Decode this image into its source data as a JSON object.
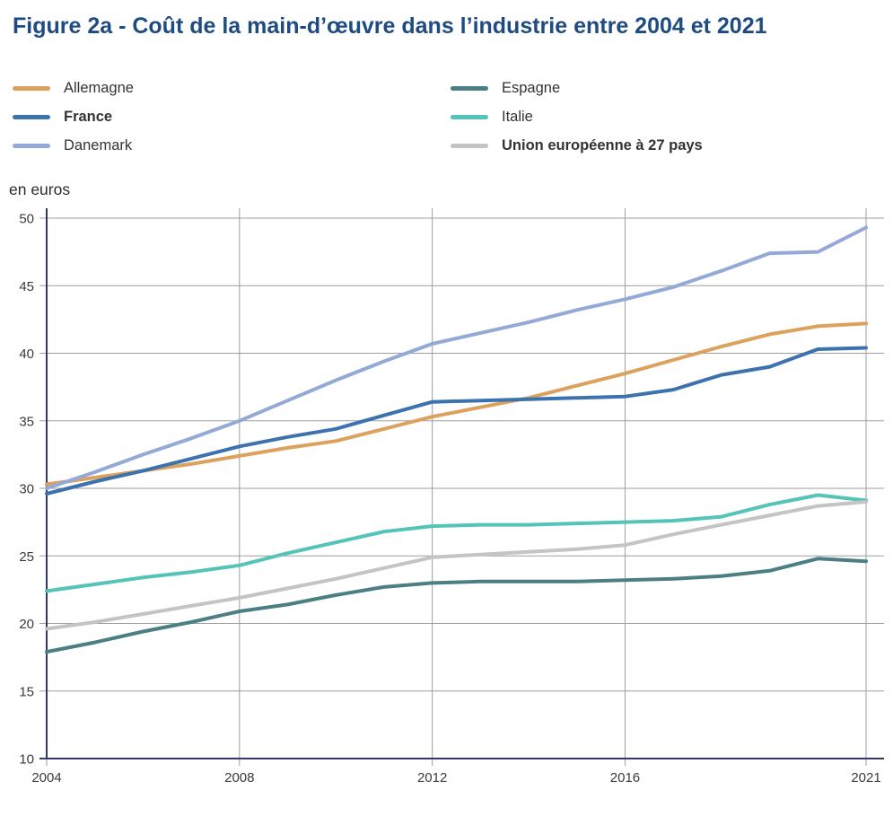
{
  "title": "Figure 2a - Coût de la main-d’œuvre dans l’industrie entre 2004 et 2021",
  "unit_label": "en euros",
  "colors": {
    "title": "#1E4B82",
    "axis": "#2F3B66",
    "grid": "#9E9E9E",
    "tick_text": "#3A3A3A",
    "legend_text": "#333333"
  },
  "chart_data": {
    "type": "line",
    "title": "Figure 2a - Coût de la main-d’œuvre dans l’industrie entre 2004 et 2021",
    "xlabel": "",
    "ylabel": "en euros",
    "grid": true,
    "legend_position": "top",
    "xlim": [
      2004,
      2021
    ],
    "ylim": [
      10,
      50
    ],
    "y_ticks": [
      10,
      15,
      20,
      25,
      30,
      35,
      40,
      45,
      50
    ],
    "x_tick_years": [
      2004,
      2008,
      2012,
      2016,
      2021
    ],
    "x_tick_labels": [
      "2004",
      "2008",
      "2012",
      "2016",
      "2021"
    ],
    "x": [
      2004,
      2005,
      2006,
      2007,
      2008,
      2009,
      2010,
      2011,
      2012,
      2013,
      2014,
      2015,
      2016,
      2017,
      2018,
      2019,
      2020,
      2021
    ],
    "series": [
      {
        "id": "allemagne",
        "name": "Allemagne",
        "color": "#DCA25D",
        "bold": false,
        "values": [
          30.3,
          30.8,
          31.3,
          31.8,
          32.4,
          33.0,
          33.5,
          34.4,
          35.3,
          36.0,
          36.7,
          37.6,
          38.5,
          39.5,
          40.5,
          41.4,
          42.0,
          42.2
        ]
      },
      {
        "id": "france",
        "name": "France",
        "color": "#3C73AE",
        "bold": true,
        "values": [
          29.6,
          30.5,
          31.3,
          32.2,
          33.1,
          33.8,
          34.4,
          35.4,
          36.4,
          36.5,
          36.6,
          36.7,
          36.8,
          37.3,
          38.4,
          39.0,
          40.3,
          40.4
        ]
      },
      {
        "id": "danemark",
        "name": "Danemark",
        "color": "#93A9D6",
        "bold": false,
        "values": [
          30.0,
          31.2,
          32.5,
          33.7,
          35.0,
          36.5,
          38.0,
          39.4,
          40.7,
          41.5,
          42.3,
          43.2,
          44.0,
          44.9,
          46.1,
          47.4,
          47.5,
          49.3
        ]
      },
      {
        "id": "espagne",
        "name": "Espagne",
        "color": "#4C7F84",
        "bold": false,
        "values": [
          17.9,
          18.6,
          19.4,
          20.1,
          20.9,
          21.4,
          22.1,
          22.7,
          23.0,
          23.1,
          23.1,
          23.1,
          23.2,
          23.3,
          23.5,
          23.9,
          24.8,
          24.6
        ]
      },
      {
        "id": "italie",
        "name": "Italie",
        "color": "#54C4B8",
        "bold": false,
        "values": [
          22.4,
          22.9,
          23.4,
          23.8,
          24.3,
          25.2,
          26.0,
          26.8,
          27.2,
          27.3,
          27.3,
          27.4,
          27.5,
          27.6,
          27.9,
          28.8,
          29.5,
          29.1
        ]
      },
      {
        "id": "union-europeenne",
        "name": "Union européenne à 27 pays",
        "color": "#C4C4C4",
        "bold": true,
        "values": [
          19.6,
          20.1,
          20.7,
          21.3,
          21.9,
          22.6,
          23.3,
          24.1,
          24.9,
          25.1,
          25.3,
          25.5,
          25.8,
          26.6,
          27.3,
          28.0,
          28.7,
          29.0
        ]
      }
    ],
    "legend_columns": [
      [
        0,
        1,
        2
      ],
      [
        3,
        4,
        5
      ]
    ]
  }
}
